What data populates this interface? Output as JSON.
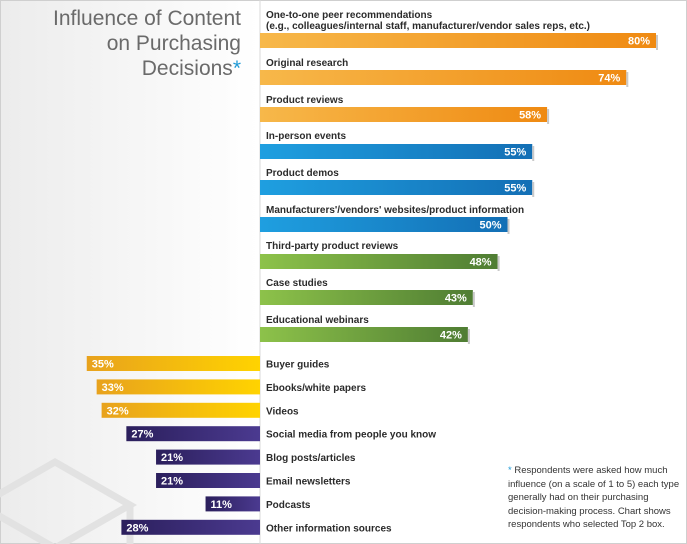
{
  "title": {
    "lines": [
      "Influence of Content",
      "on Purchasing",
      "Decisions"
    ],
    "marker": "*"
  },
  "footnote": {
    "marker": "*",
    "text": "Respondents were asked how much influence (on a scale of 1 to 5) each type generally had on their purchasing decision-making process. Chart shows respondents who selected Top 2 box."
  },
  "colors": {
    "orange": "#f29a1e",
    "blue": "#1a8fd1",
    "green": "#7fb042",
    "gold": "#f2b722",
    "purple": "#3a2a75"
  },
  "chart_data": {
    "type": "bar",
    "unit": "%",
    "categories": [
      "One-to-one peer recommendations|(e.g., colleagues/internal staff, manufacturer/vendor sales reps, etc.)",
      "Original research",
      "Product reviews",
      "In-person events",
      "Product demos",
      "Manufacturers'/vendors' websites/product information",
      "Third-party product reviews",
      "Case studies",
      "Educational webinars",
      "Buyer guides",
      "Ebooks/white papers",
      "Videos",
      "Social media from people you know",
      "Blog posts/articles",
      "Email newsletters",
      "Podcasts",
      "Other information sources"
    ],
    "values": [
      80,
      74,
      58,
      55,
      55,
      50,
      48,
      43,
      42,
      35,
      33,
      32,
      27,
      21,
      21,
      11,
      28
    ],
    "groups": [
      "orange",
      "orange",
      "orange",
      "blue",
      "blue",
      "blue",
      "green",
      "green",
      "green",
      "gold",
      "gold",
      "gold",
      "purple",
      "purple",
      "purple",
      "purple",
      "purple"
    ],
    "directions": [
      "right",
      "right",
      "right",
      "right",
      "right",
      "right",
      "right",
      "right",
      "right",
      "left",
      "left",
      "left",
      "left",
      "left",
      "left",
      "left",
      "left"
    ]
  }
}
